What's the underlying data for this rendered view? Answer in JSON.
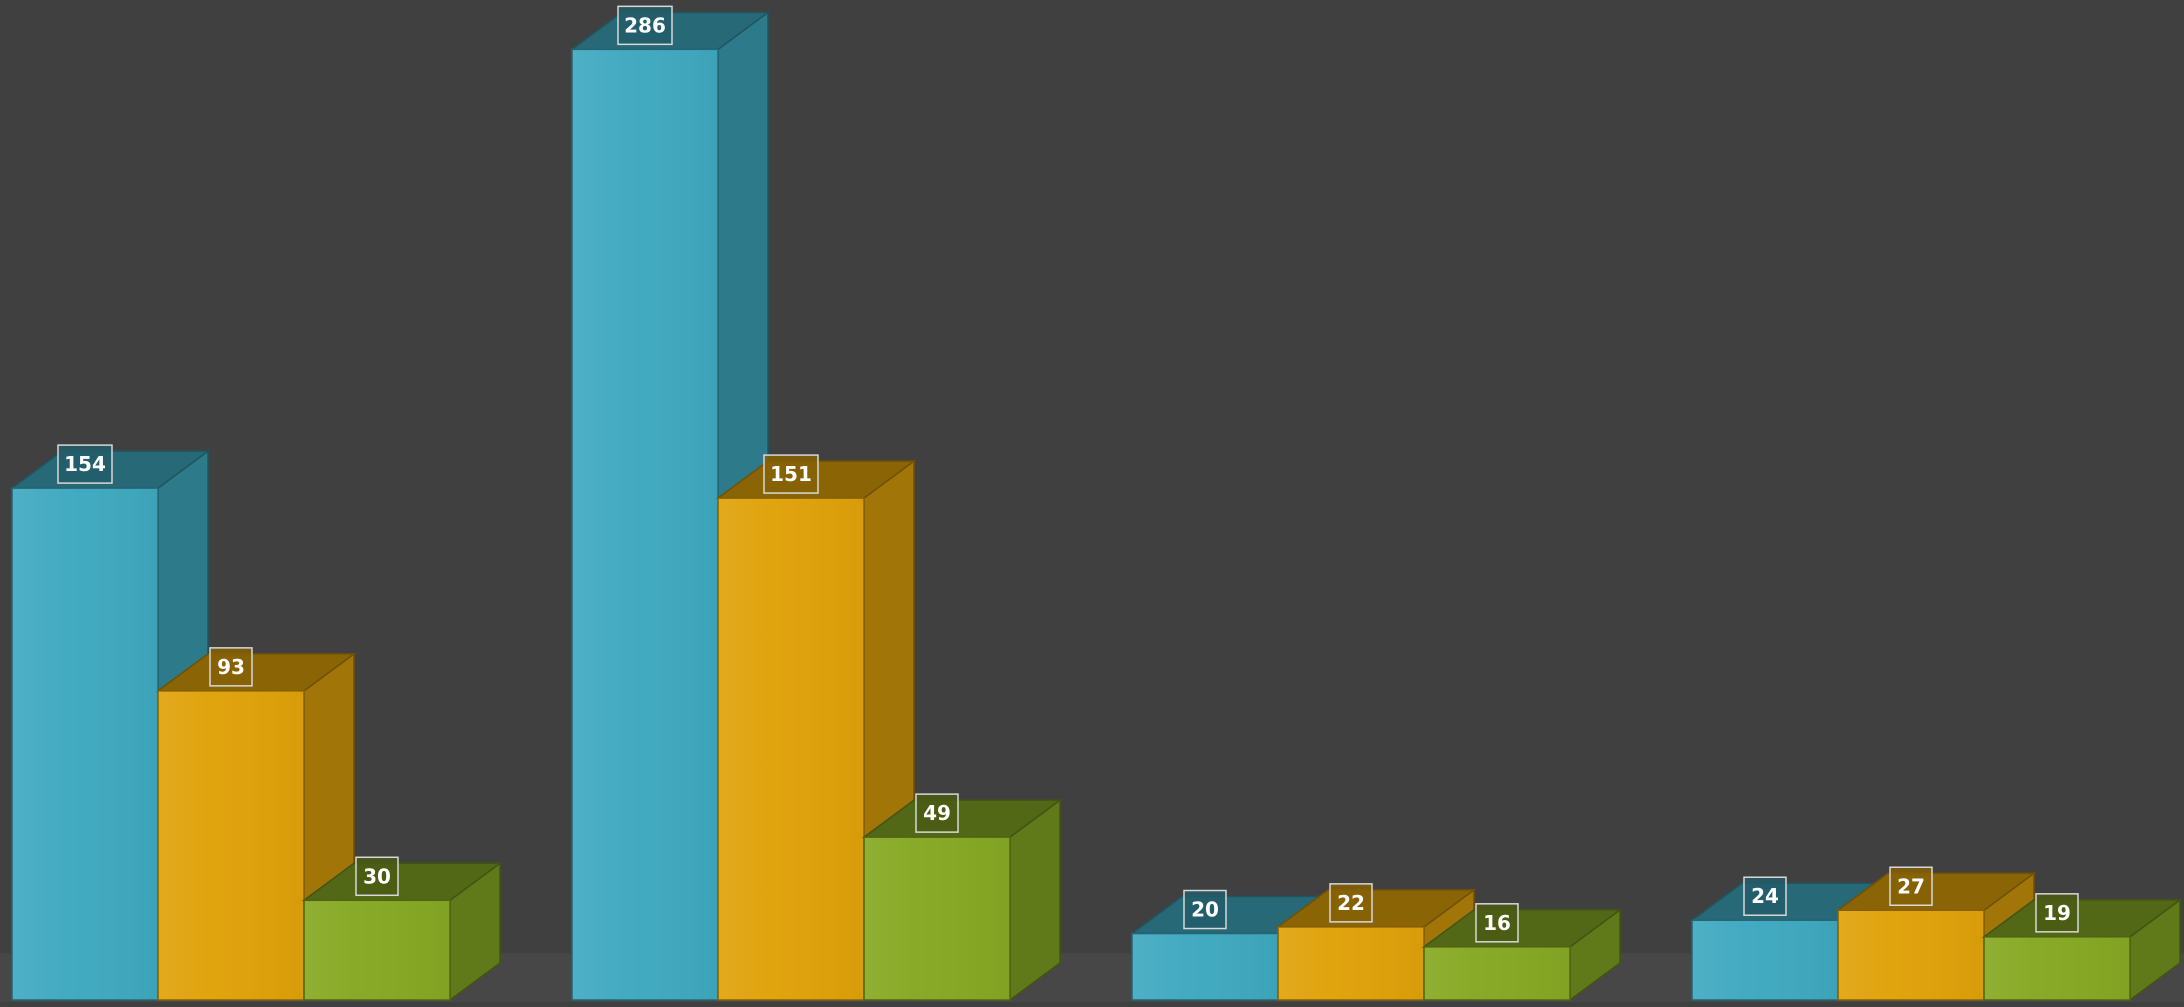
{
  "chart_data": {
    "type": "bar",
    "style": "3d-grouped",
    "categories": [
      "",
      "",
      "",
      ""
    ],
    "series": [
      {
        "values": [
          154,
          286,
          20,
          24
        ],
        "color": "#3fa9c0"
      },
      {
        "values": [
          93,
          151,
          22,
          27
        ],
        "color": "#e0a20a"
      },
      {
        "values": [
          30,
          49,
          16,
          19
        ],
        "color": "#86a823"
      }
    ],
    "ylim": [
      0,
      286
    ],
    "data_labels": true,
    "grid": false,
    "legend": "none",
    "background": "#404040"
  }
}
